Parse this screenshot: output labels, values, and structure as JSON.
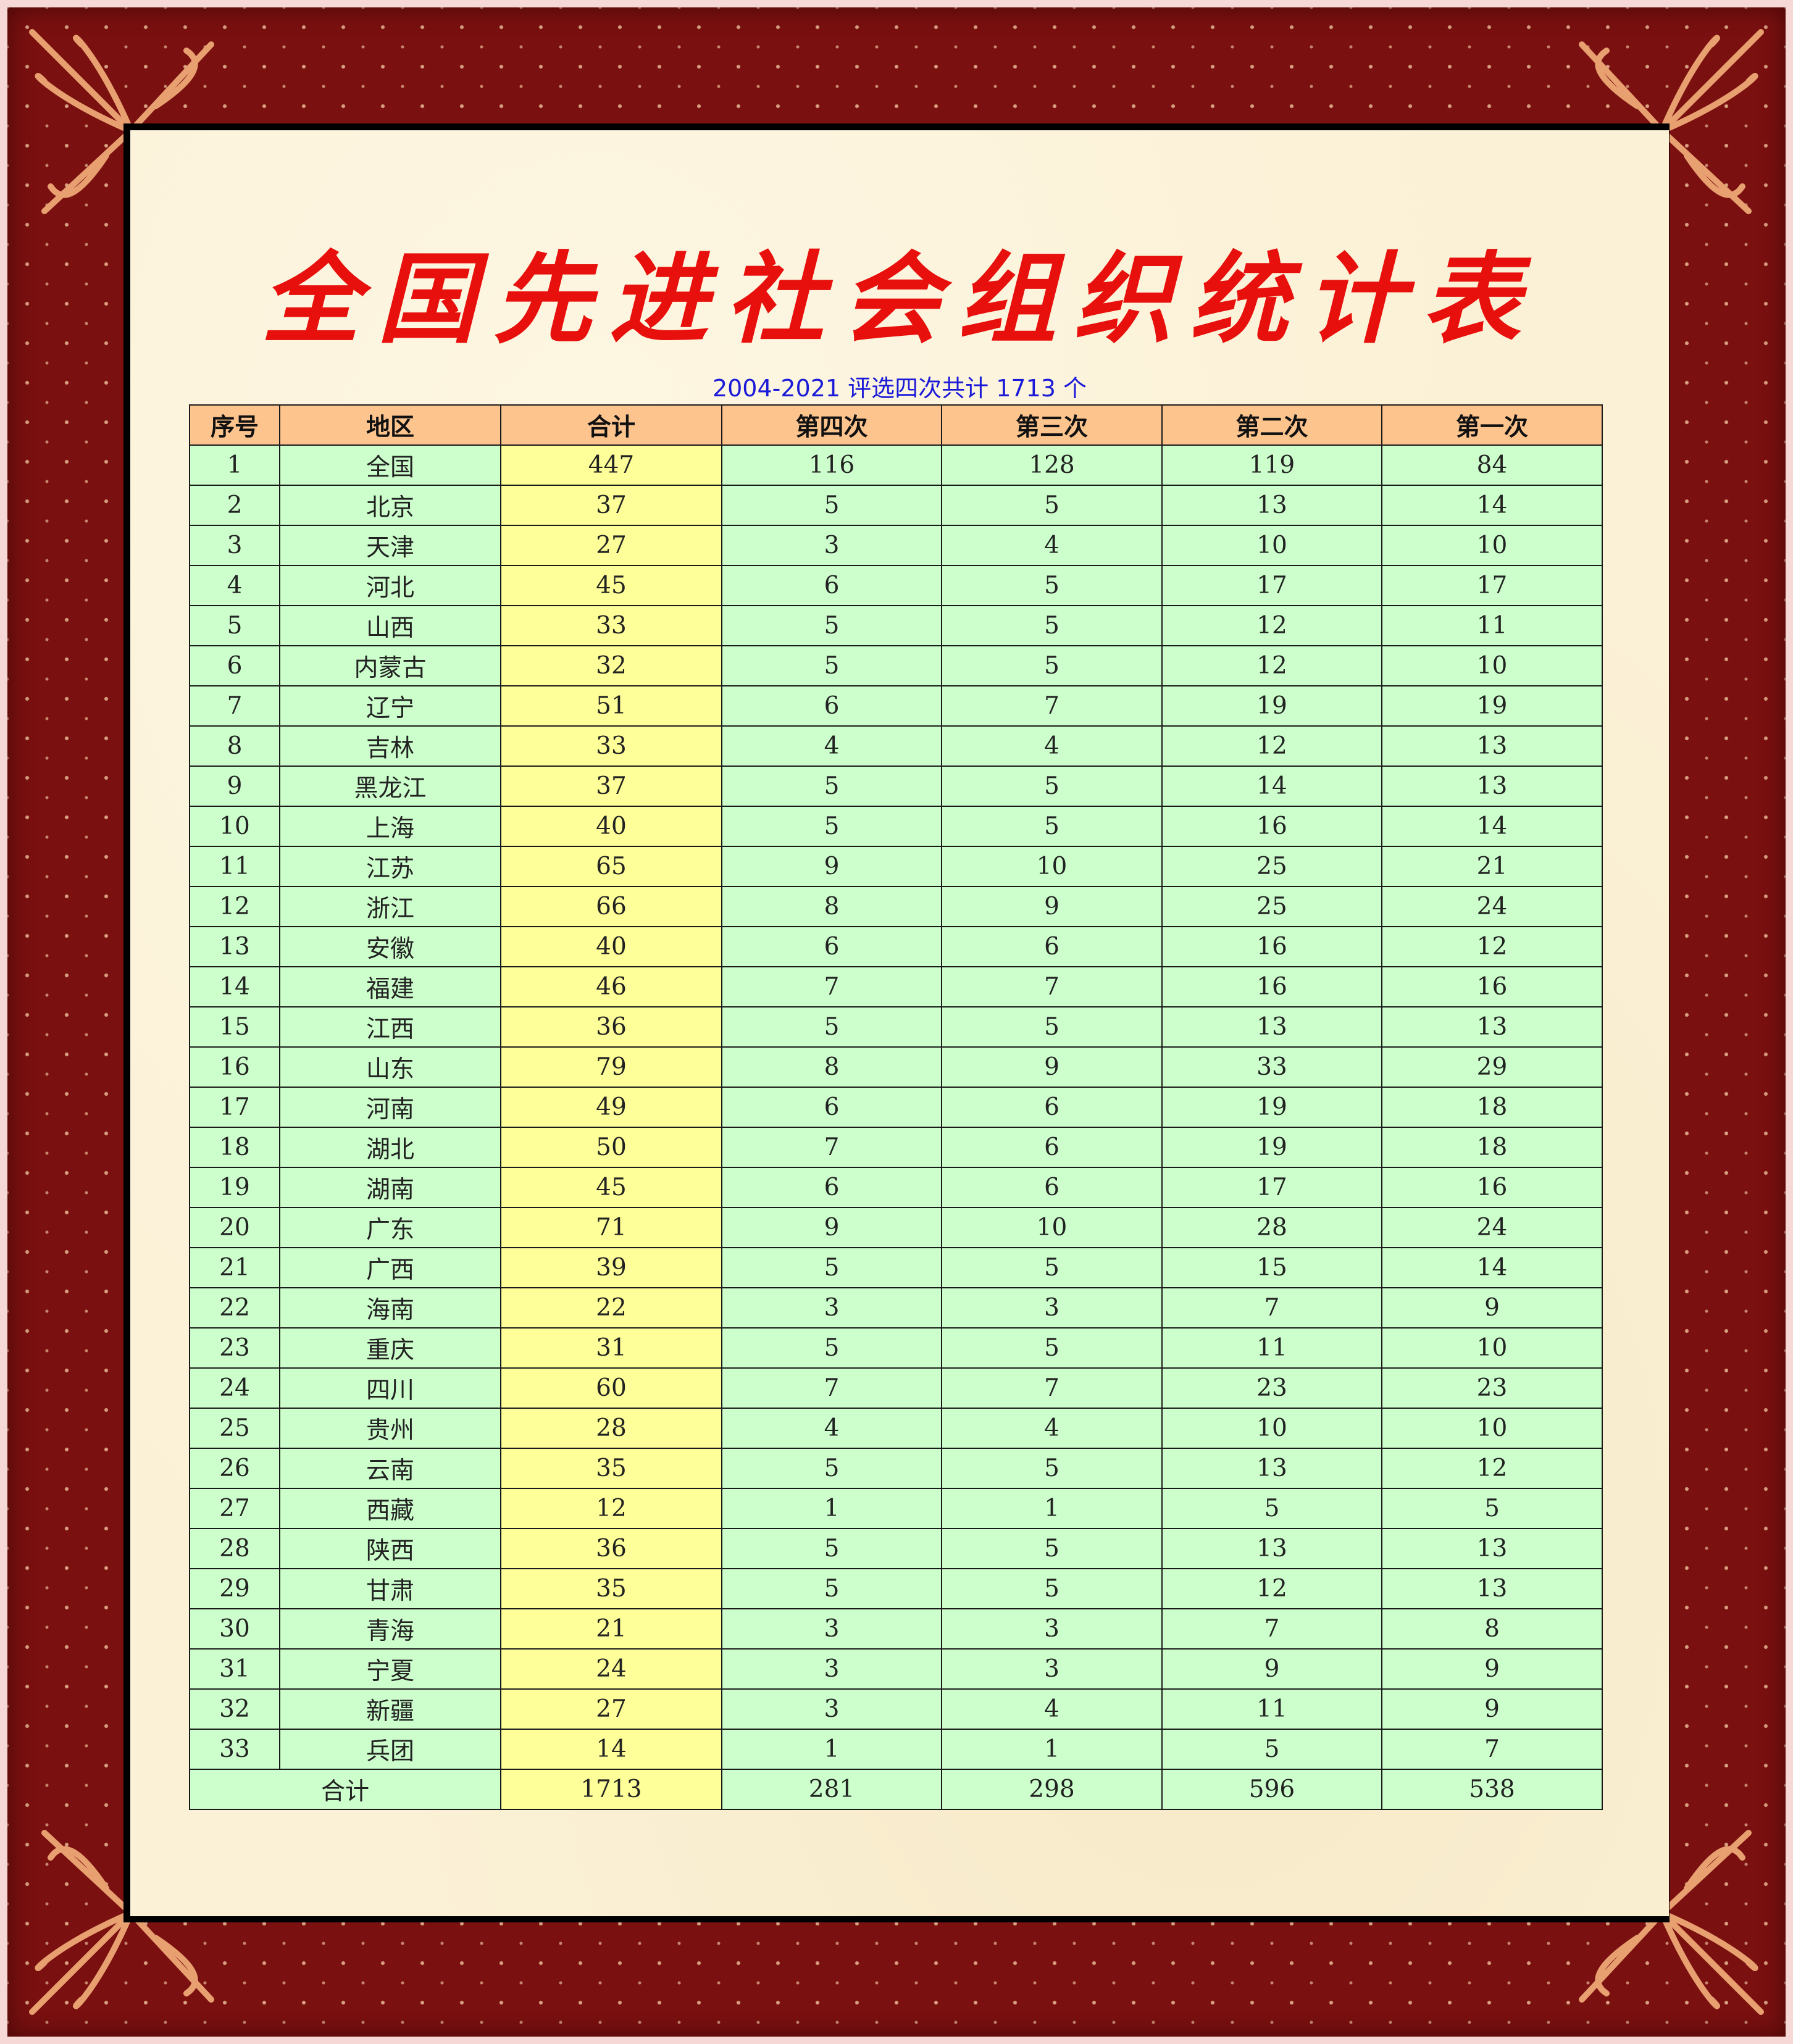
{
  "title": "全国先进社会组织统计表",
  "subtitle": "2004-2021 评选四次共计 1713 个",
  "colors": {
    "frame": "#7a1010",
    "title": "#e8100c",
    "subtitle": "#1a1ad8",
    "header_bg": "#fdc48e",
    "cell_bg": "#ccffcc",
    "total_col_bg": "#ffff99"
  },
  "table": {
    "headers": [
      "序号",
      "地区",
      "合计",
      "第四次",
      "第三次",
      "第二次",
      "第一次"
    ],
    "rows": [
      [
        "1",
        "全国",
        "447",
        "116",
        "128",
        "119",
        "84"
      ],
      [
        "2",
        "北京",
        "37",
        "5",
        "5",
        "13",
        "14"
      ],
      [
        "3",
        "天津",
        "27",
        "3",
        "4",
        "10",
        "10"
      ],
      [
        "4",
        "河北",
        "45",
        "6",
        "5",
        "17",
        "17"
      ],
      [
        "5",
        "山西",
        "33",
        "5",
        "5",
        "12",
        "11"
      ],
      [
        "6",
        "内蒙古",
        "32",
        "5",
        "5",
        "12",
        "10"
      ],
      [
        "7",
        "辽宁",
        "51",
        "6",
        "7",
        "19",
        "19"
      ],
      [
        "8",
        "吉林",
        "33",
        "4",
        "4",
        "12",
        "13"
      ],
      [
        "9",
        "黑龙江",
        "37",
        "5",
        "5",
        "14",
        "13"
      ],
      [
        "10",
        "上海",
        "40",
        "5",
        "5",
        "16",
        "14"
      ],
      [
        "11",
        "江苏",
        "65",
        "9",
        "10",
        "25",
        "21"
      ],
      [
        "12",
        "浙江",
        "66",
        "8",
        "9",
        "25",
        "24"
      ],
      [
        "13",
        "安徽",
        "40",
        "6",
        "6",
        "16",
        "12"
      ],
      [
        "14",
        "福建",
        "46",
        "7",
        "7",
        "16",
        "16"
      ],
      [
        "15",
        "江西",
        "36",
        "5",
        "5",
        "13",
        "13"
      ],
      [
        "16",
        "山东",
        "79",
        "8",
        "9",
        "33",
        "29"
      ],
      [
        "17",
        "河南",
        "49",
        "6",
        "6",
        "19",
        "18"
      ],
      [
        "18",
        "湖北",
        "50",
        "7",
        "6",
        "19",
        "18"
      ],
      [
        "19",
        "湖南",
        "45",
        "6",
        "6",
        "17",
        "16"
      ],
      [
        "20",
        "广东",
        "71",
        "9",
        "10",
        "28",
        "24"
      ],
      [
        "21",
        "广西",
        "39",
        "5",
        "5",
        "15",
        "14"
      ],
      [
        "22",
        "海南",
        "22",
        "3",
        "3",
        "7",
        "9"
      ],
      [
        "23",
        "重庆",
        "31",
        "5",
        "5",
        "11",
        "10"
      ],
      [
        "24",
        "四川",
        "60",
        "7",
        "7",
        "23",
        "23"
      ],
      [
        "25",
        "贵州",
        "28",
        "4",
        "4",
        "10",
        "10"
      ],
      [
        "26",
        "云南",
        "35",
        "5",
        "5",
        "13",
        "12"
      ],
      [
        "27",
        "西藏",
        "12",
        "1",
        "1",
        "5",
        "5"
      ],
      [
        "28",
        "陕西",
        "36",
        "5",
        "5",
        "13",
        "13"
      ],
      [
        "29",
        "甘肃",
        "35",
        "5",
        "5",
        "12",
        "13"
      ],
      [
        "30",
        "青海",
        "21",
        "3",
        "3",
        "7",
        "8"
      ],
      [
        "31",
        "宁夏",
        "24",
        "3",
        "3",
        "9",
        "9"
      ],
      [
        "32",
        "新疆",
        "27",
        "3",
        "4",
        "11",
        "9"
      ],
      [
        "33",
        "兵团",
        "14",
        "1",
        "1",
        "5",
        "7"
      ]
    ],
    "total": {
      "label": "合计",
      "values": [
        "1713",
        "281",
        "298",
        "596",
        "538"
      ]
    }
  }
}
